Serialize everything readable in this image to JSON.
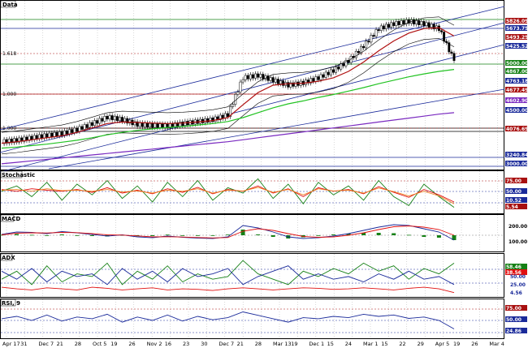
{
  "chart_data": {
    "type": "line",
    "instrument": "Data",
    "x_labels": [
      "Apr 17",
      "31",
      "Dec 7",
      "21",
      "28",
      "Oct 5",
      "19",
      "26",
      "Nov 2",
      "16",
      "23",
      "30",
      "Dec 7",
      "21",
      "28",
      "Mar 13",
      "19",
      "Dec 1",
      "15",
      "24",
      "Mar 1",
      "15",
      "22",
      "29",
      "Apr 5",
      "19",
      "26",
      "Mar 4"
    ],
    "price_panel": {
      "title": "Data",
      "y_tags": [
        {
          "text": "5826.09",
          "color": "#a81010"
        },
        {
          "text": "5673.75",
          "color": "#1a2a9a"
        },
        {
          "text": "5493.25",
          "color": "#a81010"
        },
        {
          "text": "5425.52",
          "color": "#1a2a9a"
        },
        {
          "text": "5000.00",
          "color": "#158015"
        },
        {
          "text": "4867.00",
          "color": "#158015"
        },
        {
          "text": "4763.18",
          "color": "#1a2a9a"
        },
        {
          "text": "4677.49",
          "color": "#a81010"
        },
        {
          "text": "4602.90",
          "color": "#7a2ac0"
        },
        {
          "text": "4500.00",
          "color": "#1a2a9a"
        },
        {
          "text": "4076.69",
          "color": "#a81010"
        },
        {
          "text": "3240.84",
          "color": "#1a2a9a"
        },
        {
          "text": "3000.00",
          "color": "#1a2a9a"
        }
      ],
      "fib_labels": [
        "1.618",
        "1.000",
        "1.000"
      ]
    },
    "stochastic_panel": {
      "title": "Stochastic",
      "levels": [
        "75.00",
        "50.00",
        "25.00"
      ],
      "tags": [
        {
          "text": "75.00",
          "color": "#a81010"
        },
        {
          "text": "50.00",
          "color": "#1a2a9a"
        },
        {
          "text": "10.52",
          "color": "#1a2a9a"
        },
        {
          "text": "5.54",
          "color": "#a81010"
        }
      ],
      "series": [
        {
          "color": "#158015",
          "values": [
            55,
            70,
            40,
            80,
            30,
            75,
            45,
            85,
            35,
            70,
            25,
            80,
            40,
            85,
            30,
            65,
            50,
            90,
            35,
            75,
            20,
            80,
            45,
            70,
            30,
            85,
            40,
            15,
            75,
            40,
            10
          ]
        },
        {
          "color": "#e01010",
          "values": [
            60,
            55,
            62,
            58,
            55,
            60,
            52,
            65,
            50,
            58,
            48,
            62,
            52,
            66,
            48,
            60,
            55,
            70,
            50,
            62,
            40,
            65,
            55,
            60,
            48,
            68,
            52,
            38,
            60,
            45,
            25
          ]
        },
        {
          "color": "#f08020",
          "values": [
            58,
            60,
            55,
            62,
            57,
            58,
            55,
            60,
            53,
            56,
            50,
            58,
            55,
            62,
            50,
            58,
            56,
            66,
            52,
            60,
            45,
            62,
            56,
            58,
            50,
            64,
            54,
            42,
            55,
            42,
            20
          ]
        }
      ]
    },
    "macd_panel": {
      "title": "MACD",
      "tags": [
        {
          "text": "200.00",
          "color": "#1a2a9a"
        },
        {
          "text": "100.00",
          "color": "#1a2a9a"
        }
      ],
      "macd": [
        10,
        40,
        35,
        20,
        45,
        30,
        10,
        -10,
        5,
        -20,
        -30,
        -10,
        -25,
        -35,
        -40,
        -20,
        120,
        90,
        40,
        -20,
        -40,
        -30,
        -10,
        20,
        60,
        100,
        130,
        120,
        80,
        40,
        -60
      ],
      "signal": [
        5,
        25,
        30,
        28,
        35,
        32,
        20,
        5,
        2,
        -8,
        -20,
        -18,
        -22,
        -28,
        -33,
        -28,
        50,
        80,
        60,
        20,
        -15,
        -25,
        -20,
        0,
        30,
        70,
        105,
        115,
        100,
        70,
        0
      ],
      "histogram": [
        5,
        15,
        5,
        -8,
        10,
        -2,
        -10,
        -15,
        3,
        -12,
        -10,
        8,
        -3,
        -7,
        -7,
        8,
        70,
        10,
        -20,
        -40,
        -25,
        -5,
        10,
        20,
        30,
        30,
        25,
        5,
        -20,
        -30,
        -60
      ]
    },
    "adx_panel": {
      "title": "ADX",
      "tags": [
        {
          "text": "50.00",
          "color": "#1a2a9a"
        },
        {
          "text": "25.00",
          "color": "#1a2a9a"
        },
        {
          "text": "4.56",
          "color": "#1a2a9a"
        }
      ],
      "tag_top_values": [
        "58.46",
        "38.56"
      ],
      "adx": [
        15,
        12,
        10,
        14,
        12,
        10,
        15,
        13,
        10,
        12,
        14,
        10,
        12,
        11,
        9,
        12,
        14,
        12,
        10,
        12,
        14,
        13,
        11,
        12,
        14,
        12,
        10,
        13,
        15,
        12,
        5
      ],
      "plus_di": [
        30,
        45,
        20,
        55,
        25,
        40,
        35,
        60,
        20,
        45,
        30,
        55,
        25,
        40,
        30,
        35,
        65,
        40,
        30,
        20,
        45,
        35,
        50,
        40,
        60,
        45,
        55,
        30,
        50,
        40,
        60
      ],
      "minus_di": [
        45,
        30,
        50,
        25,
        45,
        35,
        40,
        20,
        50,
        30,
        45,
        25,
        50,
        35,
        40,
        50,
        20,
        35,
        45,
        55,
        30,
        40,
        30,
        35,
        25,
        40,
        30,
        45,
        30,
        35,
        20
      ]
    },
    "rsi_panel": {
      "title": "RSI, 9",
      "tags": [
        {
          "text": "75.00",
          "color": "#a81010"
        },
        {
          "text": "50.00",
          "color": "#1a2a9a"
        },
        {
          "text": "24.86",
          "color": "#1a2a9a"
        }
      ],
      "values": [
        55,
        62,
        50,
        66,
        48,
        60,
        55,
        68,
        45,
        60,
        50,
        66,
        48,
        62,
        52,
        58,
        75,
        65,
        55,
        45,
        58,
        55,
        62,
        58,
        68,
        62,
        66,
        56,
        60,
        50,
        25
      ]
    },
    "price_series": {
      "close": [
        3150,
        3180,
        3230,
        3280,
        3320,
        3400,
        3520,
        3650,
        3600,
        3500,
        3480,
        3470,
        3520,
        3560,
        3600,
        3700,
        4450,
        4500,
        4400,
        4300,
        4350,
        4450,
        4600,
        4800,
        5100,
        5450,
        5550,
        5600,
        5550,
        5450,
        4800
      ],
      "ma_red": [
        3120,
        3150,
        3190,
        3230,
        3270,
        3340,
        3430,
        3520,
        3550,
        3540,
        3530,
        3520,
        3530,
        3550,
        3580,
        3640,
        3900,
        4150,
        4300,
        4330,
        4340,
        4380,
        4450,
        4580,
        4770,
        5000,
        5200,
        5360,
        5450,
        5470,
        5300
      ],
      "ma_green": [
        3020,
        3040,
        3070,
        3100,
        3140,
        3180,
        3230,
        3290,
        3340,
        3380,
        3410,
        3440,
        3460,
        3490,
        3520,
        3560,
        3640,
        3740,
        3840,
        3920,
        3980,
        4050,
        4110,
        4180,
        4250,
        4330,
        4400,
        4470,
        4530,
        4580,
        4620
      ],
      "ma_purple": [
        2700,
        2730,
        2760,
        2790,
        2820,
        2850,
        2880,
        2910,
        2940,
        2970,
        3000,
        3030,
        3060,
        3090,
        3120,
        3150,
        3190,
        3230,
        3270,
        3310,
        3350,
        3390,
        3430,
        3470,
        3510,
        3550,
        3590,
        3630,
        3670,
        3710,
        3740
      ]
    }
  }
}
